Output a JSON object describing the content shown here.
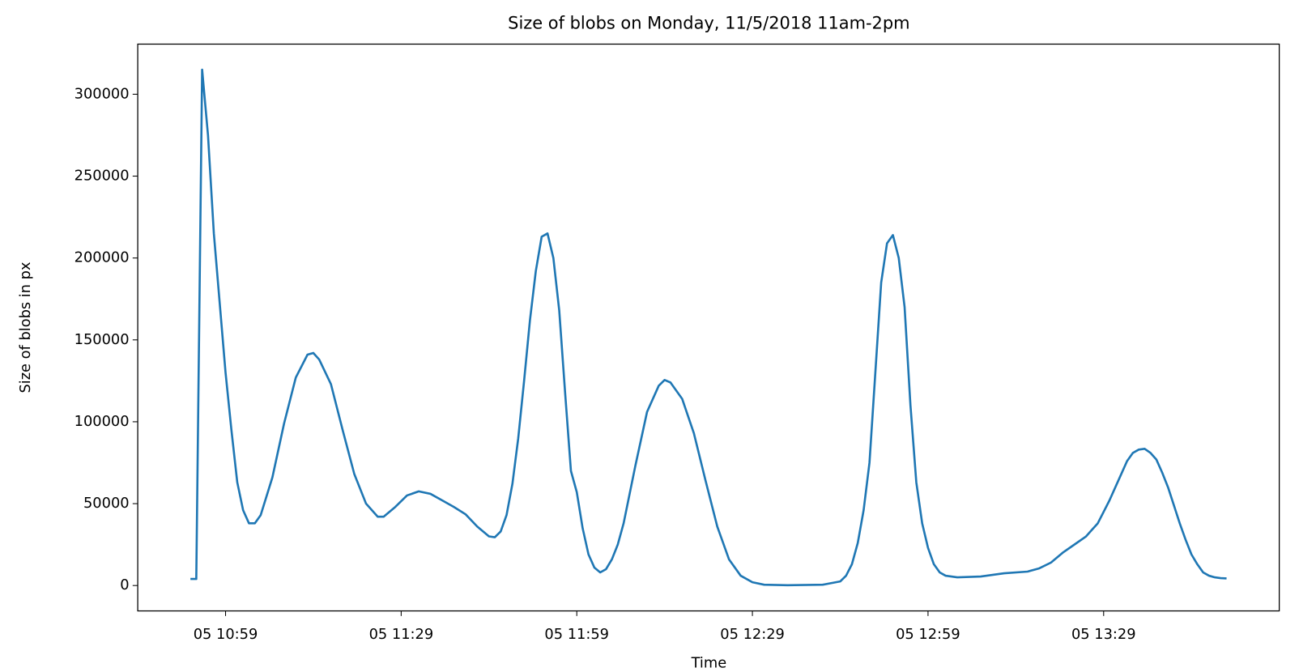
{
  "chart_data": {
    "type": "line",
    "title": "Size of blobs on Monday, 11/5/2018 11am-2pm",
    "x_label": "Time",
    "y_label": "Size of blobs in px",
    "color": "#1f77b4",
    "x": [
      "05 10:53",
      "05 10:54",
      "05 10:55",
      "05 10:56",
      "05 10:57",
      "05 10:59",
      "05 11:00",
      "05 11:01",
      "05 11:02",
      "05 11:03",
      "05 11:04",
      "05 11:05",
      "05 11:07",
      "05 11:09",
      "05 11:11",
      "05 11:13",
      "05 11:14",
      "05 11:15",
      "05 11:17",
      "05 11:19",
      "05 11:21",
      "05 11:23",
      "05 11:25",
      "05 11:26",
      "05 11:28",
      "05 11:30",
      "05 11:32",
      "05 11:34",
      "05 11:36",
      "05 11:38",
      "05 11:40",
      "05 11:42",
      "05 11:44",
      "05 11:45",
      "05 11:46",
      "05 11:47",
      "05 11:48",
      "05 11:49",
      "05 11:50",
      "05 11:51",
      "05 11:52",
      "05 11:53",
      "05 11:54",
      "05 11:55",
      "05 11:56",
      "05 11:57",
      "05 11:58",
      "05 11:59",
      "05 12:00",
      "05 12:01",
      "05 12:02",
      "05 12:03",
      "05 12:04",
      "05 12:05",
      "05 12:06",
      "05 12:07",
      "05 12:09",
      "05 12:11",
      "05 12:13",
      "05 12:14",
      "05 12:15",
      "05 12:17",
      "05 12:19",
      "05 12:21",
      "05 12:23",
      "05 12:25",
      "05 12:27",
      "05 12:29",
      "05 12:31",
      "05 12:35",
      "05 12:41",
      "05 12:44",
      "05 12:45",
      "05 12:46",
      "05 12:47",
      "05 12:48",
      "05 12:49",
      "05 12:50",
      "05 12:51",
      "05 12:52",
      "05 12:53",
      "05 12:54",
      "05 12:55",
      "05 12:56",
      "05 12:57",
      "05 12:58",
      "05 12:59",
      "05 13:00",
      "05 13:01",
      "05 13:02",
      "05 13:04",
      "05 13:08",
      "05 13:12",
      "05 13:16",
      "05 13:18",
      "05 13:20",
      "05 13:22",
      "05 13:24",
      "05 13:26",
      "05 13:27",
      "05 13:28",
      "05 13:29",
      "05 13:30",
      "05 13:31",
      "05 13:32",
      "05 13:33",
      "05 13:34",
      "05 13:35",
      "05 13:36",
      "05 13:37",
      "05 13:38",
      "05 13:39",
      "05 13:40",
      "05 13:41",
      "05 13:42",
      "05 13:43",
      "05 13:44",
      "05 13:45",
      "05 13:46",
      "05 13:47",
      "05 13:48",
      "05 13:49",
      "05 13:50"
    ],
    "values": [
      4000,
      4000,
      315000,
      275000,
      215000,
      130000,
      95000,
      63000,
      46000,
      38000,
      38000,
      43000,
      66000,
      99000,
      127000,
      141000,
      142000,
      138000,
      123000,
      95000,
      68000,
      50000,
      42000,
      42000,
      48000,
      55000,
      57500,
      56000,
      52000,
      48000,
      43500,
      36000,
      30000,
      29500,
      33000,
      43000,
      62000,
      90000,
      125000,
      162000,
      192000,
      213000,
      215000,
      200000,
      168000,
      118000,
      70000,
      57000,
      35000,
      19000,
      11000,
      8000,
      10000,
      16000,
      25000,
      38000,
      73000,
      106000,
      122000,
      125500,
      124000,
      114000,
      93000,
      64000,
      36000,
      16000,
      6000,
      2000,
      500,
      200,
      500,
      2500,
      6000,
      13000,
      26000,
      46000,
      75000,
      130000,
      185000,
      209000,
      214000,
      200000,
      170000,
      110000,
      63000,
      38000,
      23000,
      13000,
      8000,
      6000,
      5000,
      5500,
      7500,
      8500,
      10500,
      14000,
      20000,
      25000,
      30000,
      34000,
      38000,
      45000,
      52000,
      60000,
      68000,
      76000,
      81000,
      83000,
      83500,
      81000,
      77000,
      69000,
      60000,
      49000,
      38000,
      28000,
      19000,
      13000,
      8000,
      6000,
      5000,
      4500,
      4300
    ],
    "xlim": [
      "05 10:44",
      "05 13:59"
    ],
    "xticks": [
      "05 10:59",
      "05 11:29",
      "05 11:59",
      "05 12:29",
      "05 12:59",
      "05 13:29"
    ],
    "ylim": [
      -15500,
      330600
    ],
    "yticks": [
      0,
      50000,
      100000,
      150000,
      200000,
      250000,
      300000
    ]
  }
}
